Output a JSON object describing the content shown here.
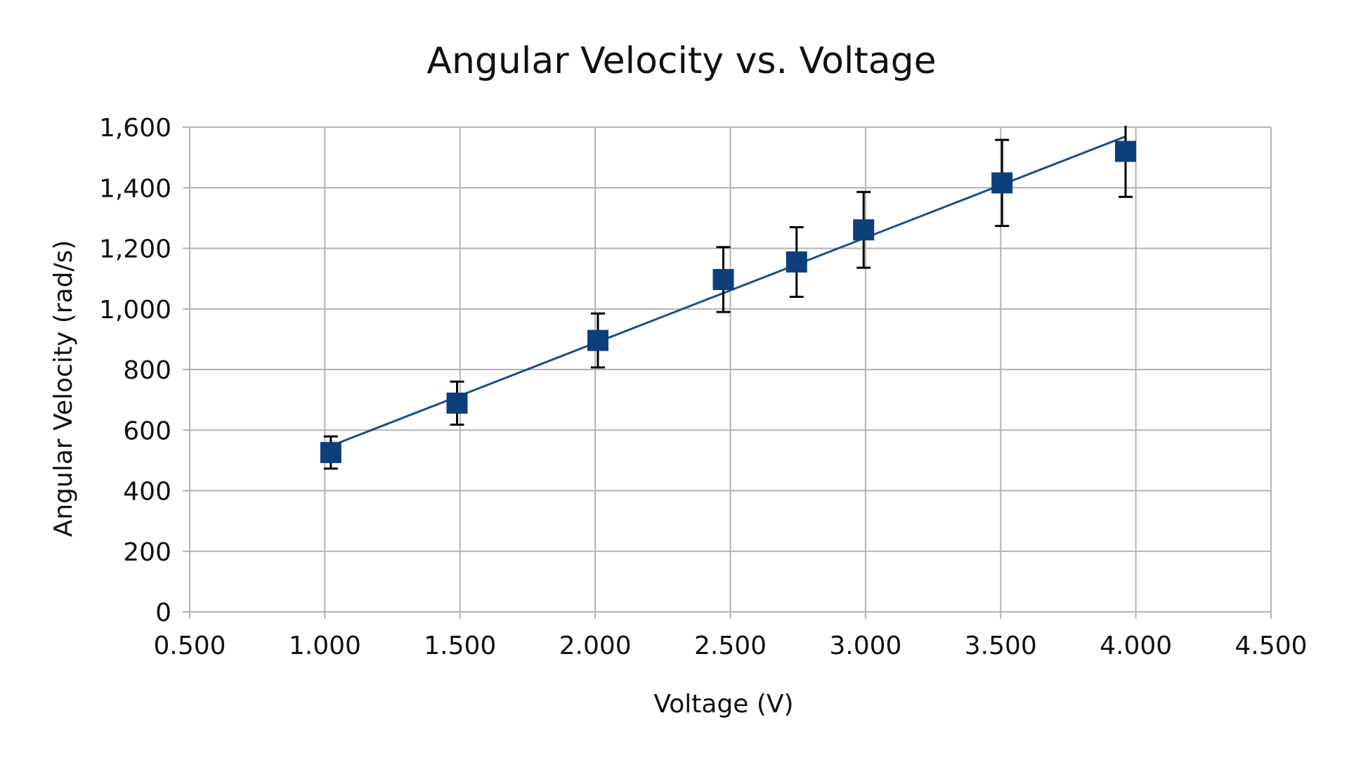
{
  "chart_data": {
    "type": "scatter",
    "title": "Angular Velocity vs. Voltage",
    "xlabel": "Voltage (V)",
    "ylabel": "Angular Velocity (rad/s)",
    "xlim": [
      0.5,
      4.5
    ],
    "ylim": [
      0,
      1600
    ],
    "xticks": [
      "0.500",
      "1.000",
      "1.500",
      "2.000",
      "2.500",
      "3.000",
      "3.500",
      "4.000",
      "4.500"
    ],
    "yticks": [
      "0",
      "200",
      "400",
      "600",
      "800",
      "1,000",
      "1,200",
      "1,400",
      "1,600"
    ],
    "grid": true,
    "legend": "none",
    "trendline": "linear",
    "marker": "square",
    "colors": {
      "marker": "#0d3f7a",
      "line": "#1f4e85",
      "errorbar": "#000000",
      "grid": "#b3b3b3"
    },
    "points": [
      {
        "x": 1.022,
        "y": 526,
        "err": 53
      },
      {
        "x": 1.489,
        "y": 689,
        "err": 71
      },
      {
        "x": 2.01,
        "y": 896,
        "err": 89
      },
      {
        "x": 2.474,
        "y": 1097,
        "err": 107
      },
      {
        "x": 2.745,
        "y": 1155,
        "err": 115
      },
      {
        "x": 2.993,
        "y": 1261,
        "err": 125
      },
      {
        "x": 3.505,
        "y": 1416,
        "err": 142
      },
      {
        "x": 3.962,
        "y": 1520,
        "err": 150
      }
    ]
  }
}
